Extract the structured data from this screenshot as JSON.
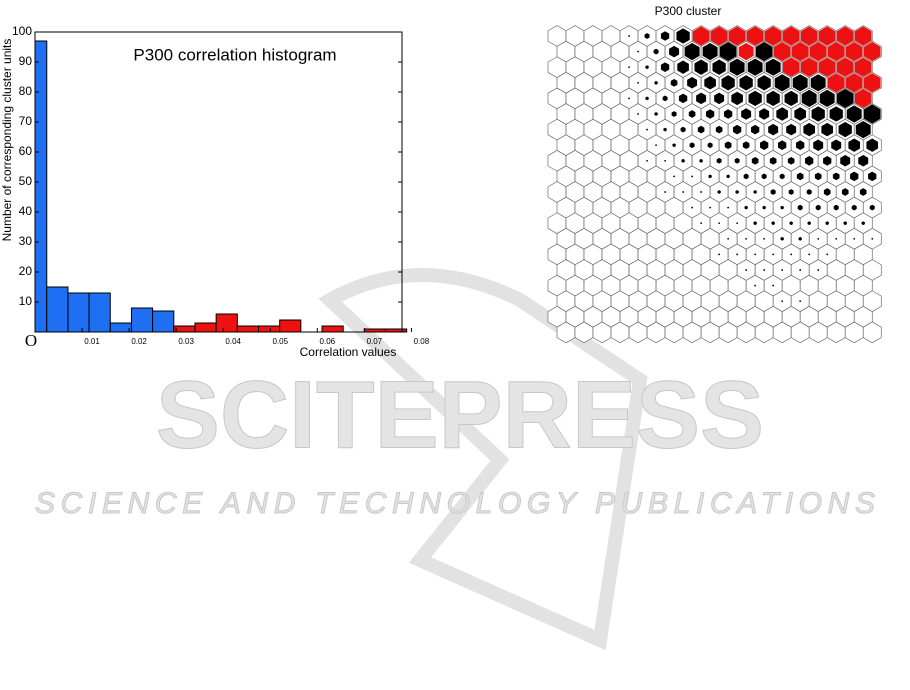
{
  "chart_data": [
    {
      "type": "histogram",
      "title": "P300 correlation histogram",
      "xlabel": "Correlation values",
      "ylabel": "Number of corresponding cluster units",
      "bins": [
        0,
        0.0025,
        0.007,
        0.0115,
        0.016,
        0.0205,
        0.025,
        0.0295,
        0.034,
        0.0385,
        0.043,
        0.0475,
        0.052,
        0.0565,
        0.061,
        0.0655,
        0.07,
        0.0745,
        0.079
      ],
      "values": [
        97,
        15,
        13,
        13,
        3,
        8,
        7,
        2,
        3,
        6,
        2,
        2,
        4,
        0,
        2,
        0,
        1,
        1
      ],
      "colors": [
        "#1f6ff2",
        "#1f6ff2",
        "#1f6ff2",
        "#1f6ff2",
        "#1f6ff2",
        "#1f6ff2",
        "#1f6ff2",
        "#ee1111",
        "#ee1111",
        "#ee1111",
        "#ee1111",
        "#ee1111",
        "#ee1111",
        "#ee1111",
        "#ee1111",
        "#ee1111",
        "#ee1111",
        "#ee1111"
      ],
      "xlim": [
        0,
        0.078
      ],
      "ylim": [
        0,
        100
      ],
      "xticks": [
        {
          "value": 0,
          "label": "O"
        },
        0.01,
        0.02,
        0.03,
        0.04,
        0.05,
        0.06,
        0.07,
        0.08
      ],
      "yticks": [
        10,
        20,
        30,
        40,
        50,
        60,
        70,
        80,
        90,
        100
      ]
    },
    {
      "type": "hexmap",
      "title": "P300 cluster",
      "marker_color": "#000000",
      "highlight_color": "#ee1111",
      "cells": [
        [
          0,
          0,
          0,
          0,
          0.1,
          0.3,
          0.5,
          0.8,
          1,
          1,
          1,
          1,
          1,
          1,
          1,
          1,
          1,
          1
        ],
        [
          0,
          0,
          0,
          0,
          0.1,
          0.3,
          0.6,
          0.9,
          0.9,
          1,
          0.9,
          1,
          1,
          1,
          1,
          1,
          1,
          1
        ],
        [
          0,
          0,
          0,
          0,
          0.1,
          0.2,
          0.5,
          0.7,
          0.8,
          0.8,
          0.9,
          0.9,
          0.9,
          1,
          1,
          1,
          1,
          1
        ],
        [
          0,
          0,
          0,
          0,
          0.1,
          0.2,
          0.4,
          0.6,
          0.7,
          0.8,
          0.8,
          0.8,
          0.9,
          0.9,
          0.9,
          1,
          1,
          1
        ],
        [
          0,
          0,
          0,
          0,
          0.1,
          0.2,
          0.3,
          0.5,
          0.6,
          0.6,
          0.7,
          0.8,
          0.8,
          0.8,
          0.9,
          0.9,
          1,
          1
        ],
        [
          0,
          0,
          0,
          0,
          0.1,
          0.2,
          0.3,
          0.4,
          0.5,
          0.5,
          0.6,
          0.6,
          0.7,
          0.7,
          0.8,
          0.8,
          0.9,
          1
        ],
        [
          0,
          0,
          0,
          0,
          0,
          0.1,
          0.2,
          0.3,
          0.4,
          0.4,
          0.5,
          0.5,
          0.6,
          0.6,
          0.7,
          0.7,
          0.8,
          0.9
        ],
        [
          0,
          0,
          0,
          0,
          0,
          0.1,
          0.2,
          0.3,
          0.3,
          0.4,
          0.4,
          0.5,
          0.5,
          0.5,
          0.6,
          0.6,
          0.7,
          0.7
        ],
        [
          0,
          0,
          0,
          0,
          0,
          0.1,
          0.1,
          0.2,
          0.2,
          0.3,
          0.3,
          0.4,
          0.4,
          0.4,
          0.5,
          0.5,
          0.6,
          0.6
        ],
        [
          0,
          0,
          0,
          0,
          0,
          0,
          0.1,
          0.1,
          0.2,
          0.2,
          0.3,
          0.3,
          0.3,
          0.4,
          0.4,
          0.4,
          0.5,
          0.5
        ],
        [
          0,
          0,
          0,
          0,
          0,
          0,
          0.1,
          0.1,
          0.1,
          0.2,
          0.2,
          0.2,
          0.3,
          0.3,
          0.3,
          0.4,
          0.4,
          0.4
        ],
        [
          0,
          0,
          0,
          0,
          0,
          0,
          0,
          0.1,
          0.1,
          0.1,
          0.2,
          0.2,
          0.2,
          0.3,
          0.3,
          0.3,
          0.3,
          0.3
        ],
        [
          0,
          0,
          0,
          0,
          0,
          0,
          0,
          0,
          0.1,
          0.1,
          0.1,
          0.2,
          0.2,
          0.2,
          0.2,
          0.2,
          0.2,
          0.2
        ],
        [
          0,
          0,
          0,
          0,
          0,
          0,
          0,
          0,
          0,
          0.1,
          0.1,
          0.1,
          0.2,
          0.2,
          0.1,
          0.1,
          0.1,
          0.1
        ],
        [
          0,
          0,
          0,
          0,
          0,
          0,
          0,
          0,
          0,
          0.1,
          0.1,
          0.1,
          0.1,
          0.1,
          0.1,
          0.1,
          0,
          0
        ],
        [
          0,
          0,
          0,
          0,
          0,
          0,
          0,
          0,
          0,
          0,
          0.1,
          0.1,
          0.1,
          0.1,
          0.1,
          0,
          0,
          0
        ],
        [
          0,
          0,
          0,
          0,
          0,
          0,
          0,
          0,
          0,
          0,
          0,
          0.1,
          0.1,
          0,
          0,
          0,
          0,
          0
        ],
        [
          0,
          0,
          0,
          0,
          0,
          0,
          0,
          0,
          0,
          0,
          0,
          0,
          0.1,
          0.1,
          0,
          0,
          0,
          0
        ],
        [
          0,
          0,
          0,
          0,
          0,
          0,
          0,
          0,
          0,
          0,
          0,
          0,
          0,
          0,
          0,
          0,
          0,
          0
        ],
        [
          0,
          0,
          0,
          0,
          0,
          0,
          0,
          0,
          0,
          0,
          0,
          0,
          0,
          0,
          0,
          0,
          0,
          0
        ]
      ],
      "highlight": [
        [
          0,
          8
        ],
        [
          0,
          9
        ],
        [
          0,
          10
        ],
        [
          0,
          11
        ],
        [
          0,
          12
        ],
        [
          0,
          13
        ],
        [
          0,
          14
        ],
        [
          0,
          15
        ],
        [
          0,
          16
        ],
        [
          0,
          17
        ],
        [
          1,
          10
        ],
        [
          1,
          12
        ],
        [
          1,
          13
        ],
        [
          1,
          14
        ],
        [
          1,
          15
        ],
        [
          1,
          16
        ],
        [
          1,
          17
        ],
        [
          2,
          13
        ],
        [
          2,
          14
        ],
        [
          2,
          15
        ],
        [
          2,
          16
        ],
        [
          2,
          17
        ],
        [
          3,
          15
        ],
        [
          3,
          16
        ],
        [
          3,
          17
        ],
        [
          4,
          17
        ]
      ]
    }
  ],
  "watermark": {
    "title": "SCITEPRESS",
    "subtitle": "SCIENCE AND TECHNOLOGY PUBLICATIONS"
  }
}
